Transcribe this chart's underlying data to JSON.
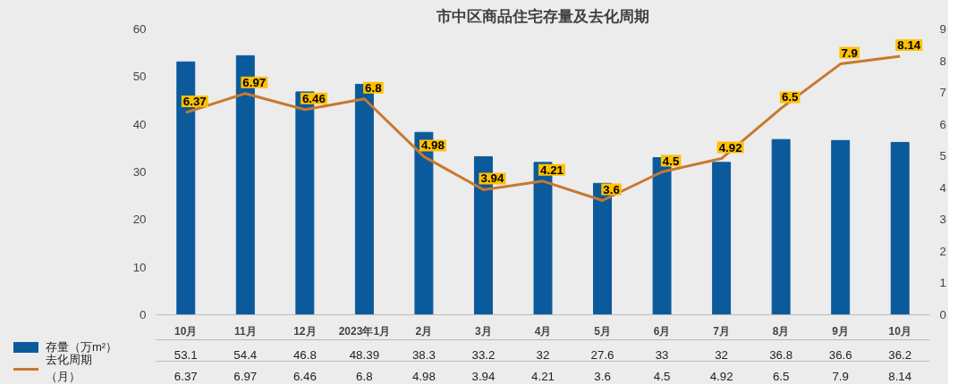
{
  "chart_data": {
    "type": "bar",
    "title": "市中区商品住宅存量及去化周期",
    "categories": [
      "10月",
      "11月",
      "12月",
      "2023年1月",
      "2月",
      "3月",
      "4月",
      "5月",
      "6月",
      "7月",
      "8月",
      "9月",
      "10月"
    ],
    "series": [
      {
        "name": "存量（万m²）",
        "color": "#0b5a9c",
        "values": [
          53.1,
          54.4,
          46.8,
          48.39,
          38.3,
          33.2,
          32,
          27.6,
          33,
          32,
          36.8,
          36.6,
          36.2
        ]
      },
      {
        "name": "去化周期（月）",
        "type": "line",
        "axis": "y2",
        "color": "#c8782e",
        "values": [
          6.37,
          6.97,
          6.46,
          6.8,
          4.98,
          3.94,
          4.21,
          3.6,
          4.5,
          4.92,
          6.5,
          7.9,
          8.14
        ]
      }
    ],
    "annotations": [
      "6.37",
      "6.97",
      "6.46",
      "6.8",
      "4.98",
      "3.94",
      "4.21",
      "3.6",
      "4.5",
      "4.92",
      "6.5",
      "7.9",
      "8.14"
    ],
    "ylim": [
      0,
      60
    ],
    "yticks": [
      0,
      10,
      20,
      30,
      40,
      50,
      60
    ],
    "y2lim": [
      0,
      9
    ],
    "y2ticks": [
      0,
      1,
      2,
      3,
      4,
      5,
      6,
      7,
      8,
      9
    ],
    "data_labels": true,
    "legend": "bottom left"
  }
}
